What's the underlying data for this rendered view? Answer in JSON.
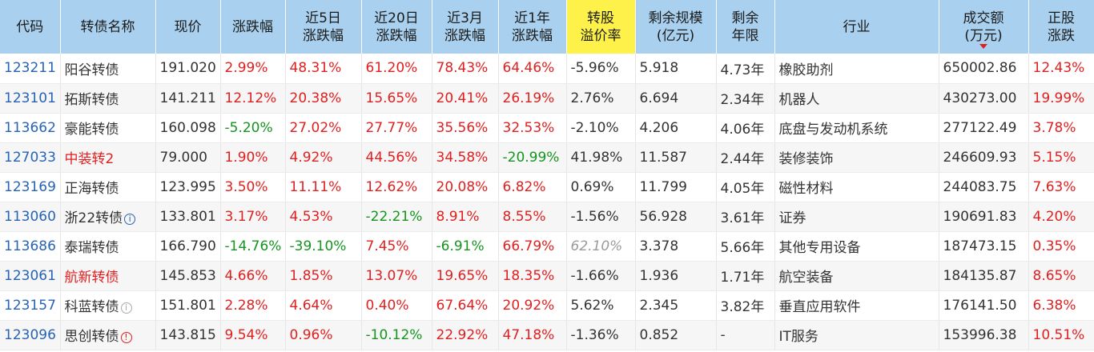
{
  "table": {
    "headers": [
      {
        "key": "code",
        "label": "代码"
      },
      {
        "key": "name",
        "label": "转债名称"
      },
      {
        "key": "price",
        "label": "现价"
      },
      {
        "key": "change",
        "label": "涨跌幅"
      },
      {
        "key": "d5",
        "label": "近5日\n涨跌幅"
      },
      {
        "key": "d20",
        "label": "近20日\n涨跌幅"
      },
      {
        "key": "m3",
        "label": "近3月\n涨跌幅"
      },
      {
        "key": "y1",
        "label": "近1年\n涨跌幅"
      },
      {
        "key": "premium",
        "label": "转股\n溢价率"
      },
      {
        "key": "scale",
        "label": "剩余规模\n(亿元)"
      },
      {
        "key": "years",
        "label": "剩余\n年限"
      },
      {
        "key": "industry",
        "label": "行业"
      },
      {
        "key": "volume",
        "label": "成交额\n(万元)"
      },
      {
        "key": "stock_change",
        "label": "正股\n涨跌"
      }
    ],
    "rows": [
      {
        "code": "123211",
        "name": "阳谷转债",
        "price": "191.020",
        "change": "2.99%",
        "d5": "48.31%",
        "d20": "61.20%",
        "m3": "78.43%",
        "y1": "64.46%",
        "premium": "-5.96%",
        "scale": "5.918",
        "years": "4.73年",
        "industry": "橡胶助剂",
        "volume": "650002.86",
        "stock_change": "12.43%"
      },
      {
        "code": "123101",
        "name": "拓斯转债",
        "price": "141.211",
        "change": "12.12%",
        "d5": "20.38%",
        "d20": "15.65%",
        "m3": "20.41%",
        "y1": "26.19%",
        "premium": "2.76%",
        "scale": "6.694",
        "years": "2.34年",
        "industry": "机器人",
        "volume": "430273.00",
        "stock_change": "19.99%"
      },
      {
        "code": "113662",
        "name": "豪能转债",
        "price": "160.098",
        "change": "-5.20%",
        "d5": "27.02%",
        "d20": "27.77%",
        "m3": "35.56%",
        "y1": "32.53%",
        "premium": "-2.10%",
        "scale": "4.206",
        "years": "4.06年",
        "industry": "底盘与发动机系统",
        "volume": "277122.49",
        "stock_change": "3.78%"
      },
      {
        "code": "127033",
        "name": "中装转2",
        "price": "79.000",
        "change": "1.90%",
        "d5": "4.92%",
        "d20": "44.56%",
        "m3": "34.58%",
        "y1": "-20.99%",
        "premium": "41.98%",
        "scale": "11.587",
        "years": "2.44年",
        "industry": "装修装饰",
        "volume": "246609.93",
        "stock_change": "5.15%"
      },
      {
        "code": "123169",
        "name": "正海转债",
        "price": "123.995",
        "change": "3.50%",
        "d5": "11.11%",
        "d20": "12.62%",
        "m3": "20.08%",
        "y1": "6.82%",
        "premium": "0.69%",
        "scale": "11.799",
        "years": "4.05年",
        "industry": "磁性材料",
        "volume": "244083.75",
        "stock_change": "7.63%"
      },
      {
        "code": "113060",
        "name": "浙22转债",
        "price": "133.801",
        "change": "3.17%",
        "d5": "4.53%",
        "d20": "-22.21%",
        "m3": "8.91%",
        "y1": "8.55%",
        "premium": "-1.56%",
        "scale": "56.928",
        "years": "3.61年",
        "industry": "证券",
        "volume": "190691.83",
        "stock_change": "4.20%"
      },
      {
        "code": "113686",
        "name": "泰瑞转债",
        "price": "166.790",
        "change": "-14.76%",
        "d5": "-39.10%",
        "d20": "7.45%",
        "m3": "-6.91%",
        "y1": "66.79%",
        "premium": "62.10%",
        "scale": "3.378",
        "years": "5.66年",
        "industry": "其他专用设备",
        "volume": "187473.15",
        "stock_change": "0.35%"
      },
      {
        "code": "123061",
        "name": "航新转债",
        "price": "145.853",
        "change": "4.66%",
        "d5": "1.85%",
        "d20": "13.07%",
        "m3": "19.65%",
        "y1": "18.35%",
        "premium": "-1.66%",
        "scale": "1.936",
        "years": "1.71年",
        "industry": "航空装备",
        "volume": "184135.87",
        "stock_change": "8.65%"
      },
      {
        "code": "123157",
        "name": "科蓝转债",
        "price": "151.801",
        "change": "2.28%",
        "d5": "4.64%",
        "d20": "0.40%",
        "m3": "67.64%",
        "y1": "20.92%",
        "premium": "5.62%",
        "scale": "2.345",
        "years": "3.82年",
        "industry": "垂直应用软件",
        "volume": "176141.50",
        "stock_change": "6.38%"
      },
      {
        "code": "123096",
        "name": "思创转债",
        "price": "143.815",
        "change": "9.54%",
        "d5": "0.96%",
        "d20": "-10.12%",
        "m3": "22.92%",
        "y1": "47.18%",
        "premium": "-1.36%",
        "scale": "0.852",
        "years": "-",
        "industry": "IT服务",
        "volume": "153996.38",
        "stock_change": "10.51%"
      }
    ]
  },
  "row_styles": [
    {
      "name_color": "",
      "name_icon": "",
      "premium_muted": false
    },
    {
      "name_color": "",
      "name_icon": "",
      "premium_muted": false
    },
    {
      "name_color": "",
      "name_icon": "",
      "premium_muted": false
    },
    {
      "name_color": "#e02020",
      "name_icon": "",
      "premium_muted": false
    },
    {
      "name_color": "",
      "name_icon": "",
      "premium_muted": false
    },
    {
      "name_color": "",
      "name_icon": "info-blue-icon",
      "premium_muted": false
    },
    {
      "name_color": "",
      "name_icon": "",
      "premium_muted": true
    },
    {
      "name_color": "#e02020",
      "name_icon": "",
      "premium_muted": false
    },
    {
      "name_color": "",
      "name_icon": "info-gray-icon",
      "premium_muted": false
    },
    {
      "name_color": "",
      "name_icon": "alert-red-icon",
      "premium_muted": false
    }
  ],
  "highlighted_column": "premium",
  "sorted_column": "volume",
  "colors": {
    "header_bg": "#a9d1ef",
    "highlight_bg": "#fdf14a",
    "up": "#e02020",
    "down": "#15941f",
    "code": "#2763b5"
  }
}
